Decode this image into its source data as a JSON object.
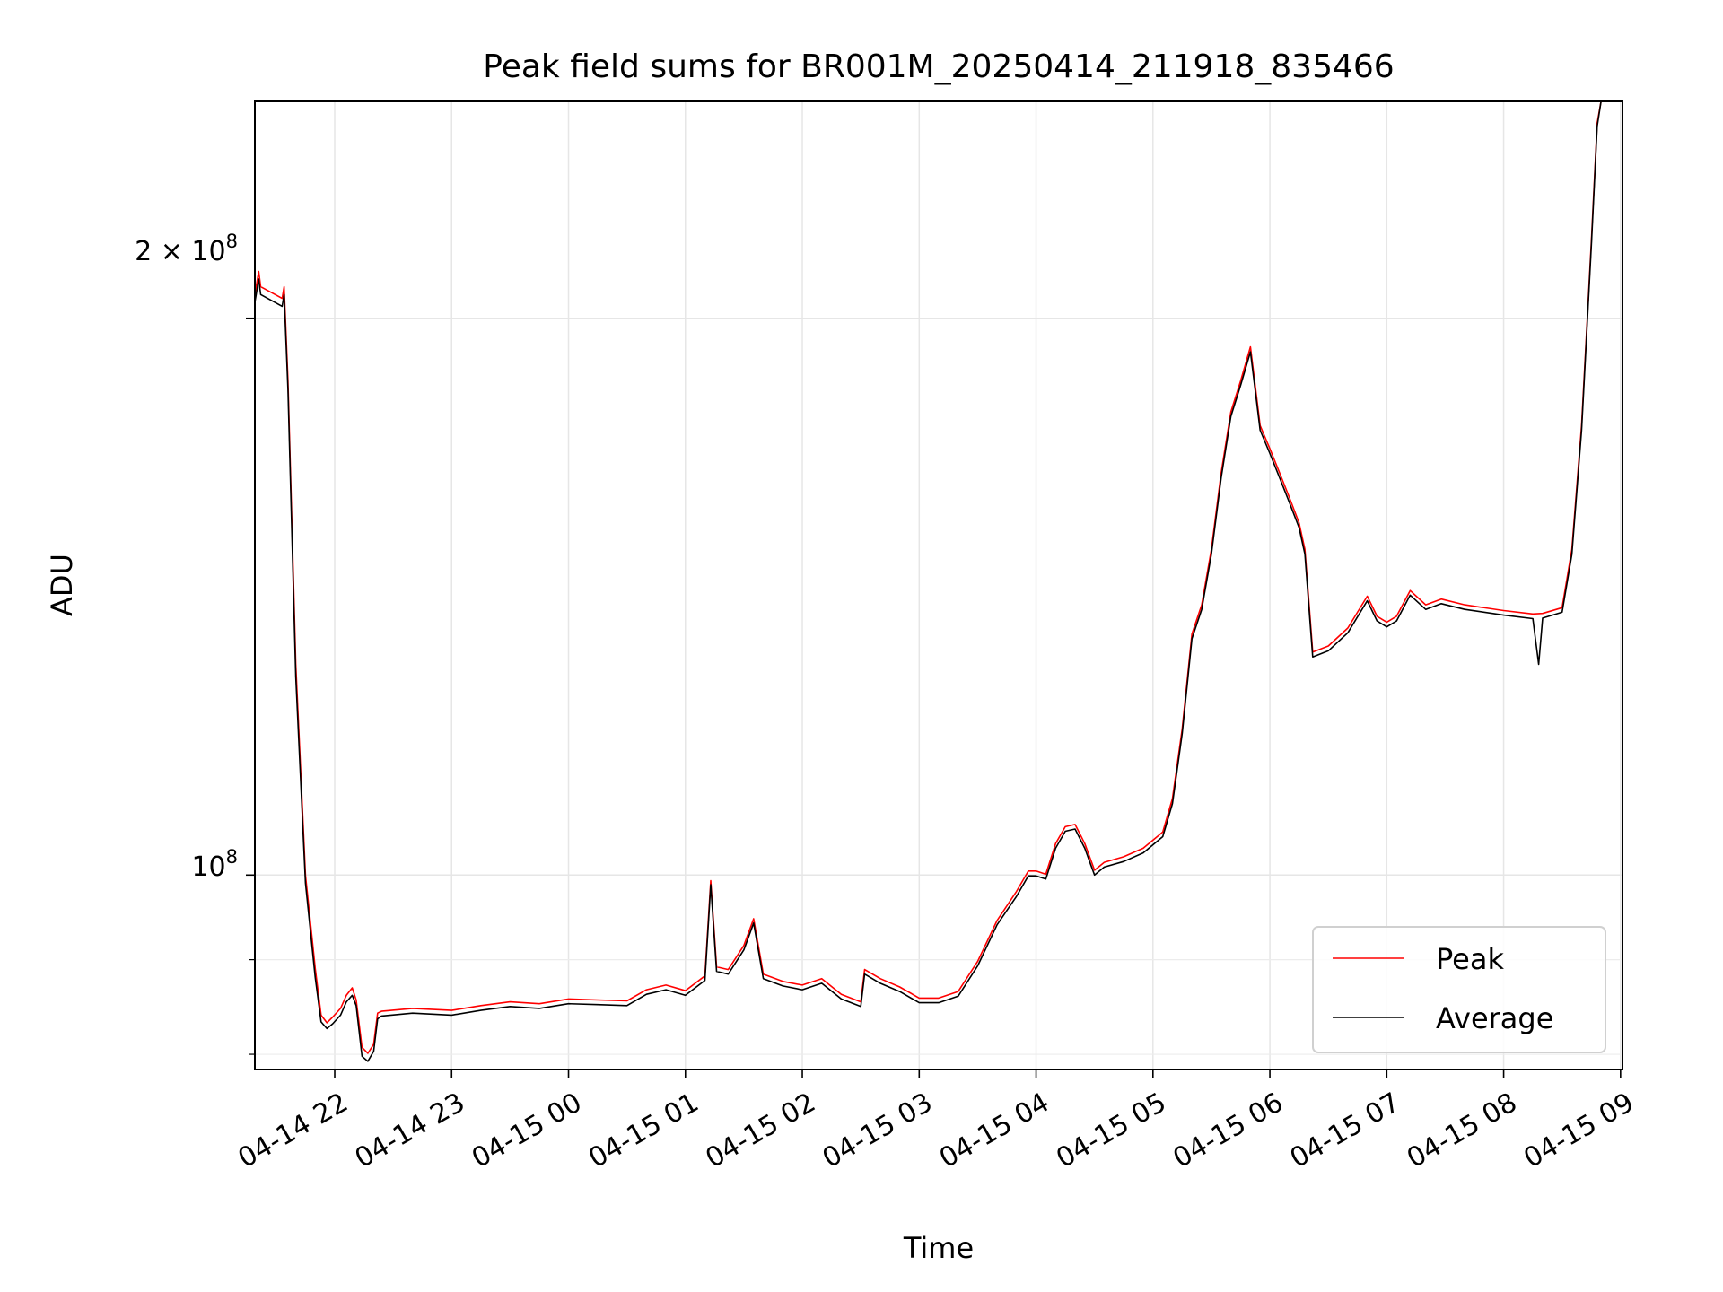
{
  "chart_data": {
    "type": "line",
    "title": "Peak field sums for BR001M_20250414_211918_835466",
    "xlabel": "Time",
    "ylabel": "ADU",
    "yscale": "log",
    "grid": true,
    "legend_position": "lower-right",
    "x_ticks": [
      "04-14 22",
      "04-14 23",
      "04-15 00",
      "04-15 01",
      "04-15 02",
      "04-15 03",
      "04-15 04",
      "04-15 05",
      "04-15 06",
      "04-15 07",
      "04-15 08",
      "04-15 09"
    ],
    "y_tick_labels": {
      "main": "10",
      "main_exp": "8",
      "upper_coef": "2 × 10",
      "upper_exp": "8"
    },
    "xlim": [
      "2025-04-14 21:19",
      "2025-04-15 09:01"
    ],
    "ylim": [
      78500000,
      262000000
    ],
    "series": [
      {
        "name": "Peak",
        "color": "#ff0000",
        "points": [
          [
            "2025-04-14 21:19",
            206000000
          ],
          [
            "2025-04-14 21:21",
            212000000
          ],
          [
            "2025-04-14 21:22",
            208000000
          ],
          [
            "2025-04-14 21:33",
            205000000
          ],
          [
            "2025-04-14 21:34",
            208000000
          ],
          [
            "2025-04-14 21:36",
            185000000
          ],
          [
            "2025-04-14 21:40",
            130000000
          ],
          [
            "2025-04-14 21:45",
            100000000
          ],
          [
            "2025-04-14 21:50",
            89000000
          ],
          [
            "2025-04-14 21:53",
            84000000
          ],
          [
            "2025-04-14 21:56",
            83200000
          ],
          [
            "2025-04-14 21:59",
            83800000
          ],
          [
            "2025-04-14 22:03",
            84700000
          ],
          [
            "2025-04-14 22:06",
            86100000
          ],
          [
            "2025-04-14 22:09",
            86900000
          ],
          [
            "2025-04-14 22:11",
            85600000
          ],
          [
            "2025-04-14 22:14",
            80700000
          ],
          [
            "2025-04-14 22:17",
            80100000
          ],
          [
            "2025-04-14 22:20",
            81000000
          ],
          [
            "2025-04-14 22:22",
            84200000
          ],
          [
            "2025-04-14 22:24",
            84400000
          ],
          [
            "2025-04-14 22:40",
            84700000
          ],
          [
            "2025-04-14 23:00",
            84500000
          ],
          [
            "2025-04-14 23:15",
            85000000
          ],
          [
            "2025-04-14 23:30",
            85400000
          ],
          [
            "2025-04-14 23:45",
            85200000
          ],
          [
            "2025-04-15 00:00",
            85700000
          ],
          [
            "2025-04-15 00:15",
            85600000
          ],
          [
            "2025-04-15 00:30",
            85500000
          ],
          [
            "2025-04-15 00:40",
            86700000
          ],
          [
            "2025-04-15 00:50",
            87200000
          ],
          [
            "2025-04-15 01:00",
            86600000
          ],
          [
            "2025-04-15 01:10",
            88200000
          ],
          [
            "2025-04-15 01:13",
            99300000
          ],
          [
            "2025-04-15 01:16",
            89200000
          ],
          [
            "2025-04-15 01:22",
            88900000
          ],
          [
            "2025-04-15 01:30",
            91600000
          ],
          [
            "2025-04-15 01:35",
            94700000
          ],
          [
            "2025-04-15 01:40",
            88400000
          ],
          [
            "2025-04-15 01:50",
            87600000
          ],
          [
            "2025-04-15 02:00",
            87200000
          ],
          [
            "2025-04-15 02:10",
            87900000
          ],
          [
            "2025-04-15 02:20",
            86200000
          ],
          [
            "2025-04-15 02:30",
            85400000
          ],
          [
            "2025-04-15 02:32",
            88900000
          ],
          [
            "2025-04-15 02:40",
            87900000
          ],
          [
            "2025-04-15 02:50",
            87000000
          ],
          [
            "2025-04-15 03:00",
            85800000
          ],
          [
            "2025-04-15 03:10",
            85800000
          ],
          [
            "2025-04-15 03:20",
            86500000
          ],
          [
            "2025-04-15 03:30",
            89800000
          ],
          [
            "2025-04-15 03:40",
            94500000
          ],
          [
            "2025-04-15 03:50",
            98000000
          ],
          [
            "2025-04-15 03:56",
            100500000
          ],
          [
            "2025-04-15 04:00",
            100500000
          ],
          [
            "2025-04-15 04:05",
            100100000
          ],
          [
            "2025-04-15 04:10",
            104000000
          ],
          [
            "2025-04-15 04:15",
            106200000
          ],
          [
            "2025-04-15 04:20",
            106500000
          ],
          [
            "2025-04-15 04:25",
            104000000
          ],
          [
            "2025-04-15 04:30",
            100600000
          ],
          [
            "2025-04-15 04:35",
            101600000
          ],
          [
            "2025-04-15 04:45",
            102300000
          ],
          [
            "2025-04-15 04:55",
            103400000
          ],
          [
            "2025-04-15 05:05",
            105500000
          ],
          [
            "2025-04-15 05:10",
            110000000
          ],
          [
            "2025-04-15 05:15",
            120000000
          ],
          [
            "2025-04-15 05:20",
            135000000
          ],
          [
            "2025-04-15 05:25",
            140000000
          ],
          [
            "2025-04-15 05:30",
            150000000
          ],
          [
            "2025-04-15 05:35",
            165000000
          ],
          [
            "2025-04-15 05:40",
            178000000
          ],
          [
            "2025-04-15 05:45",
            185000000
          ],
          [
            "2025-04-15 05:50",
            193000000
          ],
          [
            "2025-04-15 05:55",
            175000000
          ],
          [
            "2025-04-15 06:00",
            170000000
          ],
          [
            "2025-04-15 06:05",
            165000000
          ],
          [
            "2025-04-15 06:10",
            160000000
          ],
          [
            "2025-04-15 06:15",
            155000000
          ],
          [
            "2025-04-15 06:18",
            150000000
          ],
          [
            "2025-04-15 06:22",
            132000000
          ],
          [
            "2025-04-15 06:30",
            133000000
          ],
          [
            "2025-04-15 06:40",
            136000000
          ],
          [
            "2025-04-15 06:50",
            141500000
          ],
          [
            "2025-04-15 06:55",
            138000000
          ],
          [
            "2025-04-15 07:00",
            137000000
          ],
          [
            "2025-04-15 07:05",
            138000000
          ],
          [
            "2025-04-15 07:12",
            142500000
          ],
          [
            "2025-04-15 07:20",
            140000000
          ],
          [
            "2025-04-15 07:28",
            141000000
          ],
          [
            "2025-04-15 07:40",
            140000000
          ],
          [
            "2025-04-15 08:00",
            139000000
          ],
          [
            "2025-04-15 08:15",
            138400000
          ],
          [
            "2025-04-15 08:20",
            138500000
          ],
          [
            "2025-04-15 08:30",
            139500000
          ],
          [
            "2025-04-15 08:35",
            150000000
          ],
          [
            "2025-04-15 08:40",
            175000000
          ],
          [
            "2025-04-15 08:45",
            220000000
          ],
          [
            "2025-04-15 08:48",
            255000000
          ],
          [
            "2025-04-15 08:50",
            262000000
          ]
        ]
      },
      {
        "name": "Average",
        "color": "#000000",
        "points": [
          [
            "2025-04-14 21:19",
            204000000
          ],
          [
            "2025-04-14 21:21",
            210000000
          ],
          [
            "2025-04-14 21:22",
            206000000
          ],
          [
            "2025-04-14 21:33",
            203000000
          ],
          [
            "2025-04-14 21:34",
            206000000
          ],
          [
            "2025-04-14 21:36",
            183000000
          ],
          [
            "2025-04-14 21:40",
            128000000
          ],
          [
            "2025-04-14 21:45",
            99000000
          ],
          [
            "2025-04-14 21:50",
            88000000
          ],
          [
            "2025-04-14 21:53",
            83300000
          ],
          [
            "2025-04-14 21:56",
            82600000
          ],
          [
            "2025-04-14 21:59",
            83100000
          ],
          [
            "2025-04-14 22:03",
            84000000
          ],
          [
            "2025-04-14 22:06",
            85400000
          ],
          [
            "2025-04-14 22:09",
            86100000
          ],
          [
            "2025-04-14 22:11",
            85000000
          ],
          [
            "2025-04-14 22:14",
            79800000
          ],
          [
            "2025-04-14 22:17",
            79300000
          ],
          [
            "2025-04-14 22:20",
            80300000
          ],
          [
            "2025-04-14 22:22",
            83600000
          ],
          [
            "2025-04-14 22:24",
            83900000
          ],
          [
            "2025-04-14 22:40",
            84200000
          ],
          [
            "2025-04-14 23:00",
            84000000
          ],
          [
            "2025-04-14 23:15",
            84500000
          ],
          [
            "2025-04-14 23:30",
            84900000
          ],
          [
            "2025-04-14 23:45",
            84700000
          ],
          [
            "2025-04-15 00:00",
            85200000
          ],
          [
            "2025-04-15 00:15",
            85100000
          ],
          [
            "2025-04-15 00:30",
            85000000
          ],
          [
            "2025-04-15 00:40",
            86200000
          ],
          [
            "2025-04-15 00:50",
            86700000
          ],
          [
            "2025-04-15 01:00",
            86100000
          ],
          [
            "2025-04-15 01:10",
            87700000
          ],
          [
            "2025-04-15 01:13",
            98800000
          ],
          [
            "2025-04-15 01:16",
            88700000
          ],
          [
            "2025-04-15 01:22",
            88400000
          ],
          [
            "2025-04-15 01:30",
            91100000
          ],
          [
            "2025-04-15 01:35",
            94200000
          ],
          [
            "2025-04-15 01:40",
            87900000
          ],
          [
            "2025-04-15 01:50",
            87100000
          ],
          [
            "2025-04-15 02:00",
            86700000
          ],
          [
            "2025-04-15 02:10",
            87400000
          ],
          [
            "2025-04-15 02:20",
            85700000
          ],
          [
            "2025-04-15 02:30",
            84900000
          ],
          [
            "2025-04-15 02:32",
            88400000
          ],
          [
            "2025-04-15 02:40",
            87400000
          ],
          [
            "2025-04-15 02:50",
            86500000
          ],
          [
            "2025-04-15 03:00",
            85300000
          ],
          [
            "2025-04-15 03:10",
            85300000
          ],
          [
            "2025-04-15 03:20",
            86000000
          ],
          [
            "2025-04-15 03:30",
            89300000
          ],
          [
            "2025-04-15 03:40",
            94000000
          ],
          [
            "2025-04-15 03:50",
            97400000
          ],
          [
            "2025-04-15 03:56",
            99900000
          ],
          [
            "2025-04-15 04:00",
            99900000
          ],
          [
            "2025-04-15 04:05",
            99500000
          ],
          [
            "2025-04-15 04:10",
            103400000
          ],
          [
            "2025-04-15 04:15",
            105600000
          ],
          [
            "2025-04-15 04:20",
            105900000
          ],
          [
            "2025-04-15 04:25",
            103400000
          ],
          [
            "2025-04-15 04:30",
            100000000
          ],
          [
            "2025-04-15 04:35",
            101000000
          ],
          [
            "2025-04-15 04:45",
            101700000
          ],
          [
            "2025-04-15 04:55",
            102800000
          ],
          [
            "2025-04-15 05:05",
            104900000
          ],
          [
            "2025-04-15 05:10",
            109300000
          ],
          [
            "2025-04-15 05:15",
            119300000
          ],
          [
            "2025-04-15 05:20",
            134200000
          ],
          [
            "2025-04-15 05:25",
            139200000
          ],
          [
            "2025-04-15 05:30",
            149100000
          ],
          [
            "2025-04-15 05:35",
            164000000
          ],
          [
            "2025-04-15 05:40",
            177000000
          ],
          [
            "2025-04-15 05:45",
            184000000
          ],
          [
            "2025-04-15 05:50",
            191800000
          ],
          [
            "2025-04-15 05:55",
            174000000
          ],
          [
            "2025-04-15 06:00",
            169000000
          ],
          [
            "2025-04-15 06:05",
            164000000
          ],
          [
            "2025-04-15 06:10",
            159000000
          ],
          [
            "2025-04-15 06:15",
            154100000
          ],
          [
            "2025-04-15 06:18",
            149100000
          ],
          [
            "2025-04-15 06:22",
            131200000
          ],
          [
            "2025-04-15 06:30",
            132200000
          ],
          [
            "2025-04-15 06:40",
            135200000
          ],
          [
            "2025-04-15 06:50",
            140700000
          ],
          [
            "2025-04-15 06:55",
            137200000
          ],
          [
            "2025-04-15 07:00",
            136200000
          ],
          [
            "2025-04-15 07:05",
            137200000
          ],
          [
            "2025-04-15 07:12",
            141700000
          ],
          [
            "2025-04-15 07:20",
            139200000
          ],
          [
            "2025-04-15 07:28",
            140200000
          ],
          [
            "2025-04-15 07:40",
            139200000
          ],
          [
            "2025-04-15 08:00",
            138200000
          ],
          [
            "2025-04-15 08:15",
            137600000
          ],
          [
            "2025-04-15 08:18",
            130000000
          ],
          [
            "2025-04-15 08:20",
            137700000
          ],
          [
            "2025-04-15 08:30",
            138700000
          ],
          [
            "2025-04-15 08:35",
            149100000
          ],
          [
            "2025-04-15 08:40",
            174000000
          ],
          [
            "2025-04-15 08:45",
            219000000
          ],
          [
            "2025-04-15 08:48",
            254000000
          ],
          [
            "2025-04-15 08:50",
            262000000
          ]
        ]
      }
    ]
  }
}
